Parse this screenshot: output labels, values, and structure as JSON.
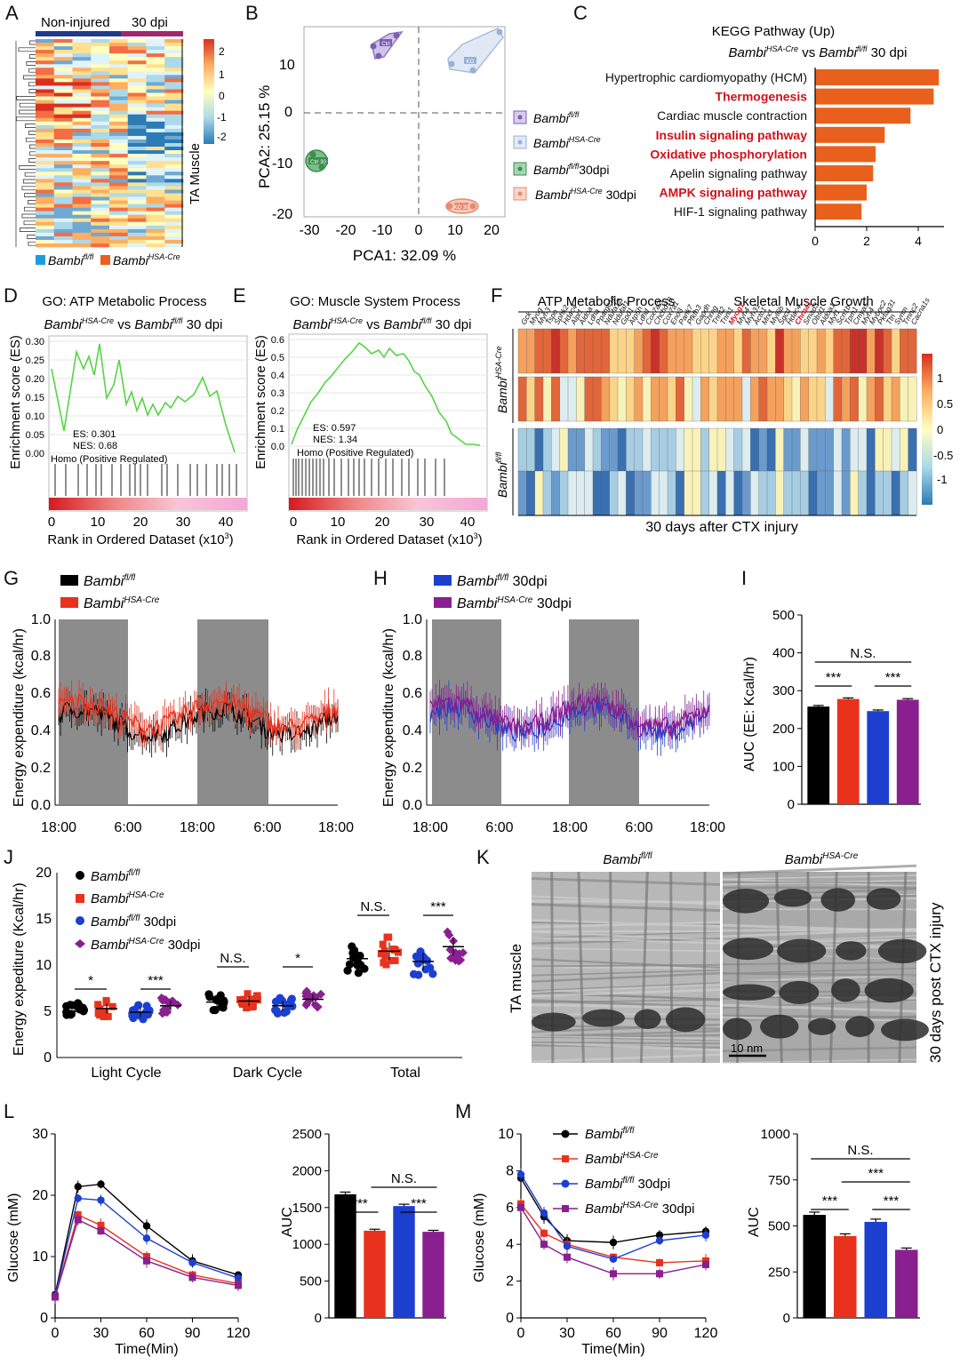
{
  "panel_letters": [
    "A",
    "B",
    "C",
    "D",
    "E",
    "F",
    "G",
    "H",
    "I",
    "J",
    "K",
    "L",
    "M"
  ],
  "colors": {
    "black": "#000000",
    "red": "#e8321e",
    "blue": "#1d3fd0",
    "purple": "#8a1f8f",
    "kegg_bar": "#e8601c",
    "kegg_highlight": "#d0121b",
    "gsea_line": "#55d443",
    "pca_ctrl": "#9b82c7",
    "pca_cre": "#b9cbe8",
    "pca_ctrl30": "#3b8e4f",
    "pca_cre30": "#f2a58c",
    "gray_band": "#8c8c8c"
  },
  "A": {
    "groups": [
      "Non-injured",
      "30 dpi"
    ],
    "side_label": "TA Muscle",
    "scale_ticks": [
      "2",
      "1",
      "0",
      "-1",
      "-2"
    ],
    "legend": [
      "Bambi",
      "fl/fl",
      "Bambi",
      "HSA-Cre"
    ]
  },
  "B": {
    "xlabel": "PCA1:  32.09 %",
    "ylabel": "PCA2:  25.15 %",
    "xticks": [
      "-30",
      "-20",
      "-10",
      "0",
      "10",
      "20"
    ],
    "yticks": [
      "10",
      "0",
      "-10",
      "-20"
    ],
    "legend": [
      {
        "name": "Bambi",
        "sup": "fl/fl",
        "suffix": ""
      },
      {
        "name": "Bambi",
        "sup": "HSA-Cre",
        "suffix": ""
      },
      {
        "name": "Bambi",
        "sup": "fl/fl",
        "suffix": "30dpi"
      },
      {
        "name": "Bambi",
        "sup": "HSA-Cre",
        "suffix": " 30dpi"
      }
    ],
    "cluster_tags": [
      "Ctrl",
      "Ctrl 30",
      "KO",
      "KO 30"
    ]
  },
  "chart_data": [
    {
      "id": "C",
      "type": "bar",
      "orientation": "horizontal",
      "title": "KEGG Pathway (Up)",
      "subtitle": [
        "Bambi",
        "HSA-Cre",
        " vs ",
        "Bambi",
        "fl/fl",
        " 30 dpi"
      ],
      "categories": [
        "Hypertrophic cardiomyopathy (HCM)",
        "Thermogenesis",
        "Cardiac muscle contraction",
        "Insulin signaling pathway",
        "Oxidative phosphorylation",
        "Apelin signaling pathway",
        "AMPK signaling pathway",
        "HIF-1 signaling pathway"
      ],
      "highlighted": [
        false,
        true,
        false,
        true,
        true,
        false,
        true,
        false
      ],
      "values": [
        4.8,
        4.6,
        3.7,
        2.7,
        2.35,
        2.25,
        2.0,
        1.8
      ],
      "xticks": [
        "0",
        "2",
        "4"
      ],
      "xlim": [
        0,
        5
      ]
    },
    {
      "id": "I",
      "type": "bar",
      "ylabel": "AUC (EE: Kcal/hr)",
      "categories": [
        "Bambi fl/fl",
        "Bambi HSA-Cre",
        "Bambi fl/fl 30dpi",
        "Bambi HSA-Cre 30dpi"
      ],
      "values": [
        258,
        278,
        246,
        276
      ],
      "errors": [
        3,
        3,
        3,
        3
      ],
      "ylim": [
        0,
        500
      ],
      "yticks": [
        "0",
        "100",
        "200",
        "300",
        "400",
        "500"
      ],
      "significance": [
        "***",
        "***",
        "N.S."
      ]
    },
    {
      "id": "L",
      "type": "line",
      "ylabel": "Glucose (mM)",
      "xlabel": "Time(Min)",
      "x": [
        0,
        15,
        30,
        60,
        90,
        120
      ],
      "xticks": [
        "0",
        "30",
        "60",
        "90",
        "120"
      ],
      "yticks": [
        "0",
        "10",
        "20",
        "30"
      ],
      "ylim": [
        0,
        30
      ],
      "series": [
        {
          "name": "Bambi fl/fl",
          "values": [
            3.8,
            21.4,
            21.8,
            15.0,
            9.3,
            7.0
          ]
        },
        {
          "name": "Bambi HSA-Cre",
          "values": [
            3.5,
            16.8,
            15.1,
            10.0,
            7.0,
            5.6
          ]
        },
        {
          "name": "Bambi fl/fl 30dpi",
          "values": [
            3.6,
            19.5,
            19.2,
            13.0,
            9.0,
            6.5
          ]
        },
        {
          "name": "Bambi HSA-Cre 30dpi",
          "values": [
            3.4,
            16.0,
            14.2,
            9.3,
            6.6,
            5.3
          ]
        }
      ]
    },
    {
      "id": "L2",
      "type": "bar",
      "ylabel": "AUC",
      "categories": [
        "Bambi fl/fl",
        "Bambi HSA-Cre",
        "Bambi fl/fl 30dpi",
        "Bambi HSA-Cre 30dpi"
      ],
      "values": [
        1680,
        1185,
        1520,
        1170
      ],
      "errors": [
        30,
        20,
        25,
        20
      ],
      "ylim": [
        0,
        2500
      ],
      "yticks": [
        "0",
        "500",
        "1000",
        "1500",
        "2000",
        "2500"
      ],
      "significance": [
        "***",
        "***",
        "N.S."
      ]
    },
    {
      "id": "M",
      "type": "line",
      "ylabel": "Glucose (mM)",
      "xlabel": "Time(Min)",
      "x": [
        0,
        15,
        30,
        60,
        90,
        120
      ],
      "xticks": [
        "0",
        "30",
        "60",
        "90",
        "120"
      ],
      "yticks": [
        "0",
        "2",
        "4",
        "6",
        "8",
        "10"
      ],
      "ylim": [
        0,
        10
      ],
      "series": [
        {
          "name": "Bambi fl/fl",
          "values": [
            7.6,
            5.5,
            4.2,
            4.1,
            4.5,
            4.7
          ]
        },
        {
          "name": "Bambi HSA-Cre",
          "values": [
            6.2,
            4.6,
            4.0,
            3.3,
            3.0,
            3.1
          ]
        },
        {
          "name": "Bambi fl/fl 30dpi",
          "values": [
            7.8,
            5.7,
            3.9,
            3.2,
            4.2,
            4.5
          ]
        },
        {
          "name": "Bambi HSA-Cre 30dpi",
          "values": [
            6.0,
            4.0,
            3.3,
            2.4,
            2.4,
            2.9
          ]
        }
      ],
      "legend": [
        {
          "name": "Bambi",
          "sup": "fl/fl",
          "suffix": ""
        },
        {
          "name": "Bambi",
          "sup": "HSA-Cre",
          "suffix": ""
        },
        {
          "name": "Bambi",
          "sup": "fl/fl",
          "suffix": " 30dpi"
        },
        {
          "name": "Bambi",
          "sup": "HSA-Cre",
          "suffix": " 30dpi"
        }
      ]
    },
    {
      "id": "M2",
      "type": "bar",
      "ylabel": "AUC",
      "categories": [
        "Bambi fl/fl",
        "Bambi HSA-Cre",
        "Bambi fl/fl 30dpi",
        "Bambi HSA-Cre 30dpi"
      ],
      "values": [
        560,
        445,
        522,
        370
      ],
      "errors": [
        15,
        12,
        15,
        10
      ],
      "ylim": [
        0,
        1000
      ],
      "yticks": [
        "0",
        "250",
        "500",
        "750",
        "1000"
      ],
      "significance": [
        "N.S.",
        "***",
        "***",
        "***"
      ]
    }
  ],
  "D": {
    "title": "GO: ATP Metabolic Process",
    "subtitle": [
      "Bambi",
      "HSA-Cre",
      " vs ",
      "Bambi",
      "fl/fl",
      " 30 dpi"
    ],
    "ylabel": "Enrichment score (ES)",
    "xlabel": "Rank in Ordered Dataset (x10",
    "xlabel_sup": "3",
    "xlabel_end": ")",
    "yticks": [
      "0.30",
      "0.25",
      "0.20",
      "0.15",
      "0.10",
      "0.05",
      "0.00"
    ],
    "xticks": [
      "0",
      "10",
      "20",
      "30",
      "40"
    ],
    "es": "ES: 0.301",
    "nes": "NES: 0.68",
    "homo": "Homo (Positive Regulated)"
  },
  "E": {
    "title": "GO: Muscle System Process",
    "subtitle": [
      "Bambi",
      "HSA-Cre",
      " vs ",
      "Bambi",
      "fl/fl",
      " 30 dpi"
    ],
    "ylabel": "Enrichment score (ES)",
    "xlabel": "Rank in Ordered Dataset (x10",
    "xlabel_sup": "3",
    "xlabel_end": ")",
    "yticks": [
      "0.6",
      "0.5",
      "0.4",
      "0.3",
      "0.2",
      "0.1",
      "0.0"
    ],
    "xticks": [
      "0",
      "10",
      "20",
      "30",
      "40"
    ],
    "es": "ES: 0.597",
    "nes": "NES: 1.34",
    "homo": "Homo (Positive Regulated)"
  },
  "F": {
    "group1": "ATP Metabolic Process",
    "group2": "Skeletal Muscle Growth",
    "footer": "30 days after CTX injury",
    "row_labels": [
      "Bambi",
      "HSA-Cre",
      "Bambi",
      "fl/fl"
    ],
    "scale_ticks": [
      "1",
      "0.5",
      "0",
      "-0.5",
      "-1"
    ],
    "genes": [
      "Gck",
      "Myog",
      "Myh3",
      "Tspo",
      "Sphk2",
      "Hdac4",
      "Alpl1",
      "Aldoa",
      "Ldha",
      "Ppargc1a",
      "Ndufa12",
      "Ndufaf1",
      "Gpd1",
      "Atp5h",
      "Ldhd",
      "Cox7a2l",
      "Chchd10",
      "Cox7a1",
      "Eno3",
      "Pank7",
      "Pfkfb3",
      "Gapdh",
      "Chrng",
      "Tnnt2",
      "Tnni1",
      "Myog1",
      "Myh4",
      "Myh31",
      "Actc1",
      "Mrx1",
      "Myl6b",
      "Sgcd",
      "Hdac4",
      "Chrna1",
      "Smad3",
      "Obsl1",
      "Aldoa1",
      "Myf1",
      "Scn1b",
      "Tpm1",
      "Cmya5",
      "Myh4",
      "Mybpc2",
      "Pkfag31",
      "Ttn",
      "Synm",
      "Tmnc2",
      "Cacna1s"
    ],
    "red_genes": [
      25,
      33
    ]
  },
  "G": {
    "ylabel": "Energy expenditure (kcal/hr)",
    "legend": [
      {
        "name": "Bambi",
        "sup": "fl/fl",
        "suffix": ""
      },
      {
        "name": "Bambi",
        "sup": "HSA-Cre",
        "suffix": ""
      }
    ],
    "yticks": [
      "0.0",
      "0.2",
      "0.4",
      "0.6",
      "0.8",
      "1.0"
    ],
    "xticks": [
      "18:00",
      "6:00",
      "18:00",
      "6:00",
      "18:00"
    ]
  },
  "H": {
    "ylabel": "Energy expenditure (kcal/hr)",
    "legend": [
      {
        "name": "Bambi",
        "sup": "fl/fl",
        "suffix": " 30dpi"
      },
      {
        "name": "Bambi",
        "sup": "HSA-Cre",
        "suffix": " 30dpi"
      }
    ],
    "yticks": [
      "0.0",
      "0.2",
      "0.4",
      "0.6",
      "0.8",
      "1.0"
    ],
    "xticks": [
      "18:00",
      "6:00",
      "18:00",
      "6:00",
      "18:00"
    ]
  },
  "J": {
    "ylabel": "Energy expediture (Kcal/hr)",
    "yticks": [
      "0",
      "5",
      "10",
      "15",
      "20"
    ],
    "groups": [
      "Light Cycle",
      "Dark Cycle",
      "Total"
    ],
    "means": [
      [
        5.0,
        5.3,
        4.9,
        5.6
      ],
      [
        6.0,
        6.1,
        5.6,
        6.3
      ],
      [
        10.7,
        11.5,
        10.4,
        12.0
      ]
    ],
    "significance": [
      "*",
      "***",
      "N.S.",
      "*",
      "N.S.",
      "***"
    ],
    "legend": [
      {
        "name": "Bambi",
        "sup": "fl/fl",
        "suffix": ""
      },
      {
        "name": "Bambi",
        "sup": "HSA-Cre",
        "suffix": ""
      },
      {
        "name": "Bambi",
        "sup": "fl/fl",
        "suffix": " 30dpi"
      },
      {
        "name": "Bambi",
        "sup": "HSA-Cre",
        "suffix": " 30dpi"
      }
    ]
  },
  "K": {
    "col1": [
      "Bambi",
      "fl/fl"
    ],
    "col2": [
      "Bambi",
      "HSA-Cre"
    ],
    "left": "TA muscle",
    "right": "30 days post CTX injury",
    "scale": "10 nm"
  }
}
